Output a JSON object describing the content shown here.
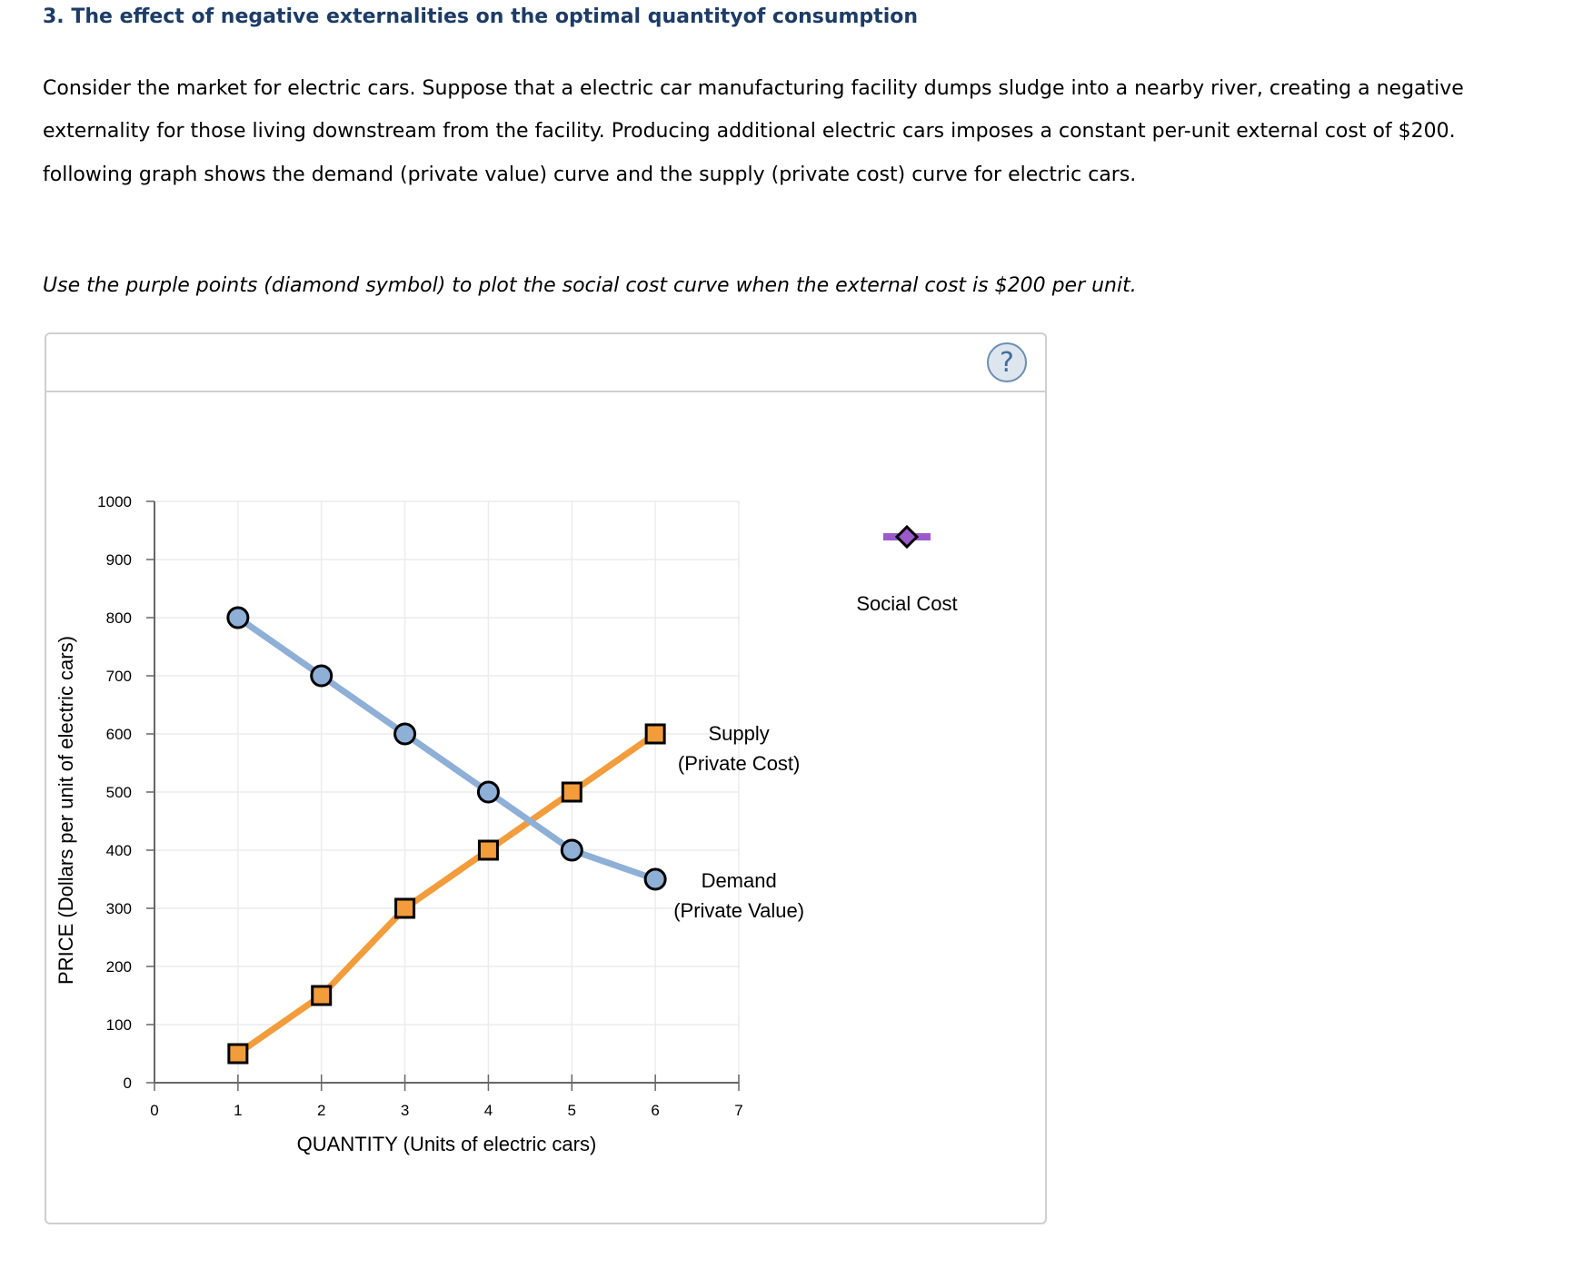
{
  "title": "3. The effect of negative externalities on the optimal quantityof consumption",
  "paragraph": {
    "line1": "Consider the market for electric cars. Suppose that a electric car manufacturing facility dumps sludge into a nearby river, creating a negative",
    "line2": "externality for those living downstream from the facility. Producing additional electric cars imposes a constant per-unit external cost of $200.",
    "line3": "following graph shows the demand (private value) curve and the supply (private cost) curve for electric cars."
  },
  "instruction": "Use the purple points (diamond symbol) to plot the social cost curve when the external cost is $200 per unit.",
  "help_button": "?",
  "palette": {
    "social_cost_tool_label": "Social Cost",
    "social_cost_color": "#9b59c9"
  },
  "colors": {
    "demand": "#8eafd6",
    "supply": "#f29c3c",
    "title": "#1d3c66"
  },
  "chart_data": {
    "type": "line",
    "xlabel": "QUANTITY (Units of electric cars)",
    "ylabel": "PRICE (Dollars per unit of electric cars)",
    "xlim": [
      0,
      7
    ],
    "ylim": [
      0,
      1000
    ],
    "x_ticks": [
      0,
      1,
      2,
      3,
      4,
      5,
      6,
      7
    ],
    "y_ticks": [
      0,
      100,
      200,
      300,
      400,
      500,
      600,
      700,
      800,
      900,
      1000
    ],
    "grid": true,
    "series": [
      {
        "name": "Demand (Private Value)",
        "label_lines": [
          "Demand",
          "(Private Value)"
        ],
        "marker": "circle",
        "x": [
          1,
          2,
          3,
          4,
          5,
          6
        ],
        "y": [
          800,
          700,
          600,
          500,
          400,
          350
        ]
      },
      {
        "name": "Supply (Private Cost)",
        "label_lines": [
          "Supply",
          "(Private Cost)"
        ],
        "marker": "square",
        "x": [
          1,
          2,
          3,
          4,
          5,
          6
        ],
        "y": [
          50,
          150,
          300,
          400,
          500,
          600
        ]
      }
    ]
  }
}
